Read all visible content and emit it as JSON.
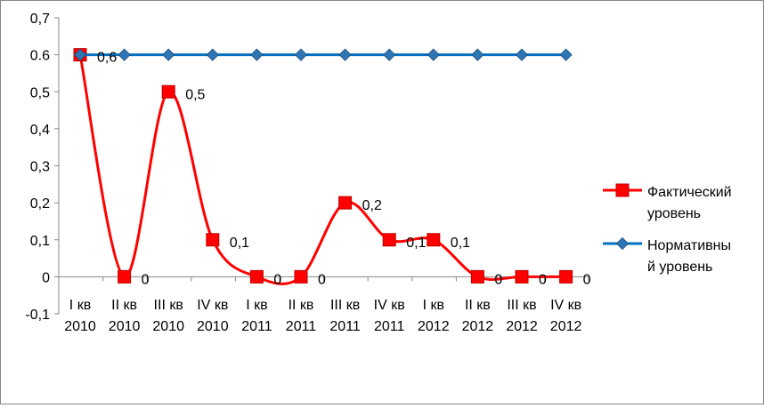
{
  "chart_data": {
    "type": "line",
    "categories": [
      [
        "I кв",
        "2010"
      ],
      [
        "II кв",
        "2010"
      ],
      [
        "III кв",
        "2010"
      ],
      [
        "IV кв",
        "2010"
      ],
      [
        "I кв",
        "2011"
      ],
      [
        "II кв",
        "2011"
      ],
      [
        "III кв",
        "2011"
      ],
      [
        "IV кв",
        "2011"
      ],
      [
        "I кв",
        "2012"
      ],
      [
        "II кв",
        "2012"
      ],
      [
        "III кв",
        "2012"
      ],
      [
        "IV кв",
        "2012"
      ]
    ],
    "series": [
      {
        "name": "Фактический уровень",
        "legend_lines": [
          "Фактический",
          "уровень"
        ],
        "values": [
          0.6,
          0,
          0.5,
          0.1,
          0,
          0,
          0.2,
          0.1,
          0.1,
          0,
          0,
          0
        ],
        "data_labels": [
          "0,6",
          "0",
          "0,5",
          "0,1",
          "0",
          "0",
          "0,2",
          "0,1",
          "0,1",
          "0",
          "0",
          "0"
        ],
        "color": "#ff0000",
        "marker": "square",
        "smooth": true
      },
      {
        "name": "Нормативный уровень",
        "legend_lines": [
          "Нормативны",
          "й уровень"
        ],
        "values": [
          0.6,
          0.6,
          0.6,
          0.6,
          0.6,
          0.6,
          0.6,
          0.6,
          0.6,
          0.6,
          0.6,
          0.6
        ],
        "color": "#0070c0",
        "marker": "diamond",
        "smooth": false
      }
    ],
    "y_ticks": [
      -0.1,
      0,
      0.1,
      0.2,
      0.3,
      0.4,
      0.5,
      0.6,
      0.7
    ],
    "y_tick_labels": [
      "-0,1",
      "0",
      "0,1",
      "0,2",
      "0,3",
      "0,4",
      "0,5",
      "0.6",
      "0,7"
    ],
    "ylim": [
      -0.1,
      0.7
    ],
    "grid": false,
    "legend_position": "right"
  }
}
